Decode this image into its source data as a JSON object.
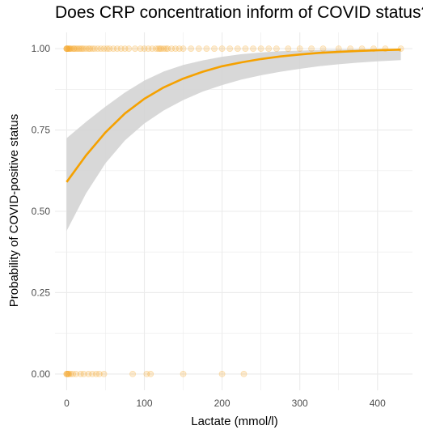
{
  "chart_data": {
    "type": "scatter",
    "title": "Does CRP concentration inform of COVID status?",
    "xlabel": "Lactate (mmol/l)",
    "ylabel": "Probability of COVID-positive status",
    "xlim": [
      -15,
      445
    ],
    "ylim": [
      -0.05,
      1.05
    ],
    "x_ticks": [
      0,
      100,
      200,
      300,
      400
    ],
    "y_ticks": [
      0.0,
      0.25,
      0.5,
      0.75,
      1.0
    ],
    "y_tick_labels": [
      "0.00",
      "0.25",
      "0.50",
      "0.75",
      "1.00"
    ],
    "grid": true,
    "colors": {
      "points": "#F5A623",
      "curve": "#F5A100",
      "ribbon": "#D4D4D4",
      "grid": "#EBEBEB"
    },
    "points_positive": [
      0,
      0,
      0,
      1,
      2,
      3,
      4,
      5,
      7,
      9,
      10,
      12,
      14,
      16,
      18,
      20,
      22,
      25,
      28,
      30,
      33,
      36,
      40,
      44,
      48,
      52,
      55,
      60,
      65,
      70,
      75,
      80,
      88,
      95,
      100,
      105,
      110,
      115,
      118,
      120,
      122,
      125,
      128,
      130,
      135,
      140,
      145,
      150,
      160,
      170,
      180,
      190,
      200,
      210,
      220,
      230,
      240,
      250,
      260,
      270,
      285,
      300,
      315,
      330,
      350,
      365,
      380,
      395,
      410,
      430
    ],
    "points_negative": [
      0,
      0,
      1,
      2,
      3,
      5,
      8,
      12,
      18,
      22,
      28,
      33,
      38,
      42,
      48,
      85,
      103,
      108,
      150,
      200,
      228
    ],
    "fit": {
      "x": [
        0,
        25,
        50,
        75,
        100,
        125,
        150,
        175,
        200,
        225,
        250,
        275,
        300,
        325,
        350,
        375,
        400,
        430
      ],
      "y": [
        0.59,
        0.672,
        0.743,
        0.801,
        0.846,
        0.881,
        0.908,
        0.929,
        0.946,
        0.958,
        0.968,
        0.976,
        0.982,
        0.987,
        0.99,
        0.993,
        0.995,
        0.997
      ],
      "lower": [
        0.44,
        0.555,
        0.648,
        0.718,
        0.77,
        0.81,
        0.842,
        0.868,
        0.888,
        0.905,
        0.918,
        0.929,
        0.938,
        0.946,
        0.952,
        0.957,
        0.961,
        0.965
      ],
      "upper": [
        0.725,
        0.775,
        0.822,
        0.865,
        0.902,
        0.93,
        0.95,
        0.964,
        0.975,
        0.983,
        0.988,
        0.992,
        0.994,
        0.996,
        0.997,
        0.998,
        0.999,
        0.999
      ]
    }
  }
}
